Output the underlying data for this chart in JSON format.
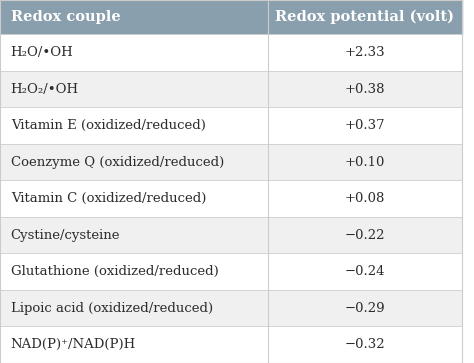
{
  "header_col1": "Redox couple",
  "header_col2": "Redox potential (volt)",
  "header_bg": "#8a9fad",
  "header_text_color": "#ffffff",
  "row_bg_alt": "#f0f0f0",
  "row_bg_main": "#ffffff",
  "border_color": "#cccccc",
  "text_color": "#2c2c2c",
  "rows": [
    {
      "couple": "H₂O/•OH",
      "potential": "+2.33"
    },
    {
      "couple": "H₂O₂/•OH",
      "potential": "+0.38"
    },
    {
      "couple": "Vitamin E (oxidized/reduced)",
      "potential": "+0.37"
    },
    {
      "couple": "Coenzyme Q (oxidized/reduced)",
      "potential": "+0.10"
    },
    {
      "couple": "Vitamin C (oxidized/reduced)",
      "potential": "+0.08"
    },
    {
      "couple": "Cystine/cysteine",
      "potential": "−0.22"
    },
    {
      "couple": "Glutathione (oxidized/reduced)",
      "potential": "−0.24"
    },
    {
      "couple": "Lipoic acid (oxidized/reduced)",
      "potential": "−0.29"
    },
    {
      "couple": "NAD(P)⁺/NAD(P)H",
      "potential": "−0.32"
    }
  ],
  "col_split": 0.58,
  "figsize": [
    4.74,
    3.63
  ],
  "dpi": 100,
  "font_size": 9.5,
  "header_font_size": 10.5
}
